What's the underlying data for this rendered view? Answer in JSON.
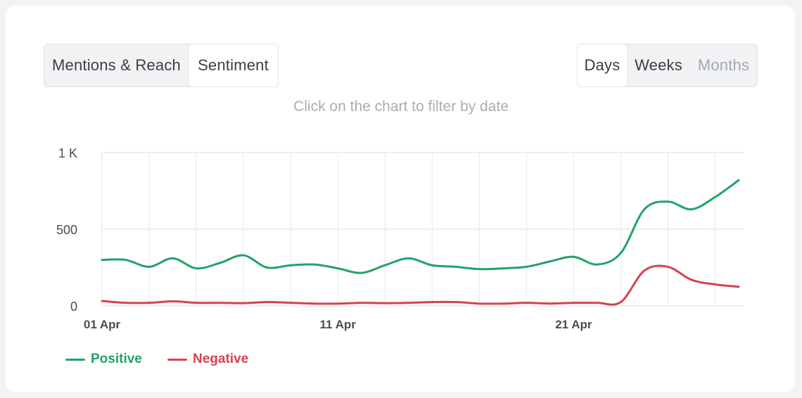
{
  "tabs": {
    "left": [
      {
        "label": "Mentions & Reach",
        "state": "normal"
      },
      {
        "label": "Sentiment",
        "state": "active"
      }
    ],
    "right": [
      {
        "label": "Days",
        "state": "active"
      },
      {
        "label": "Weeks",
        "state": "normal"
      },
      {
        "label": "Months",
        "state": "disabled"
      }
    ]
  },
  "hint": "Click on the chart to filter by date",
  "colors": {
    "positive": "#21a366",
    "negative": "#d6424f",
    "grid": "#e6e8ea",
    "axis_text": "#4a4d52"
  },
  "chart_data": {
    "type": "line",
    "x": [
      "01 Apr",
      "02 Apr",
      "03 Apr",
      "04 Apr",
      "05 Apr",
      "06 Apr",
      "07 Apr",
      "08 Apr",
      "09 Apr",
      "10 Apr",
      "11 Apr",
      "12 Apr",
      "13 Apr",
      "14 Apr",
      "15 Apr",
      "16 Apr",
      "17 Apr",
      "18 Apr",
      "19 Apr",
      "20 Apr",
      "21 Apr",
      "22 Apr",
      "23 Apr",
      "24 Apr",
      "25 Apr",
      "26 Apr",
      "27 Apr",
      "28 Apr"
    ],
    "x_tick_labels": [
      "01 Apr",
      "11 Apr",
      "21 Apr"
    ],
    "y_ticks": [
      {
        "value": 0,
        "label": "0"
      },
      {
        "value": 500,
        "label": "500"
      },
      {
        "value": 1000,
        "label": "1 K"
      }
    ],
    "ylim": [
      0,
      1000
    ],
    "grid": true,
    "legend_position": "bottom-left",
    "series": [
      {
        "name": "Positive",
        "color": "#21a366",
        "values": [
          300,
          300,
          255,
          310,
          245,
          280,
          330,
          250,
          265,
          270,
          245,
          215,
          265,
          310,
          265,
          255,
          240,
          245,
          255,
          290,
          320,
          270,
          345,
          630,
          680,
          630,
          710,
          820
        ]
      },
      {
        "name": "Negative",
        "color": "#d6424f",
        "values": [
          32,
          20,
          20,
          30,
          20,
          20,
          18,
          25,
          20,
          15,
          15,
          20,
          18,
          20,
          25,
          25,
          15,
          15,
          20,
          15,
          20,
          20,
          25,
          230,
          255,
          170,
          140,
          125
        ]
      }
    ]
  }
}
